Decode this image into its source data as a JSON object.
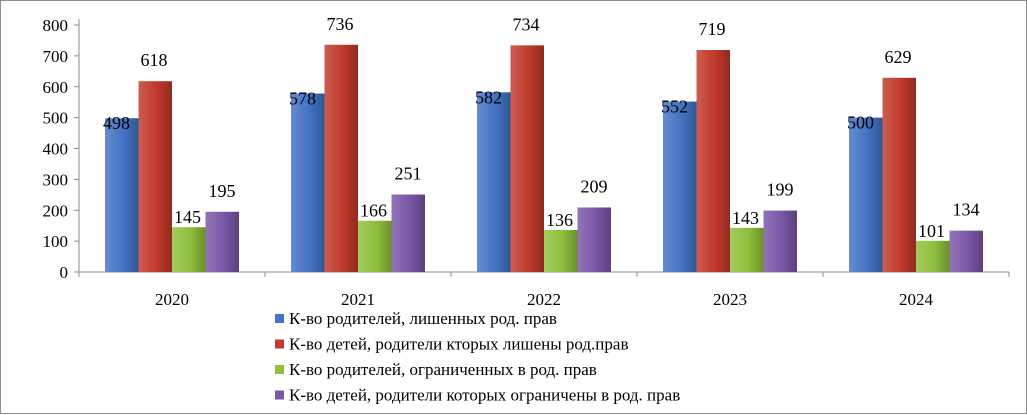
{
  "chart_data": {
    "type": "bar",
    "title": "",
    "xlabel": "",
    "ylabel": "",
    "categories": [
      "2020",
      "2021",
      "2022",
      "2023",
      "2024"
    ],
    "ylim": [
      0,
      800
    ],
    "yticks": [
      0,
      100,
      200,
      300,
      400,
      500,
      600,
      700,
      800
    ],
    "grid": false,
    "legend_position": "bottom",
    "series": [
      {
        "name": "К-во родителей, лишенных род. прав",
        "color": "#4472c4",
        "values": [
          498,
          578,
          582,
          552,
          500
        ]
      },
      {
        "name": "К-во детей, родители кторых лишены род.прав",
        "color": "#c0392b",
        "values": [
          618,
          736,
          734,
          719,
          629
        ]
      },
      {
        "name": "К-во родителей, ограниченных в род. прав",
        "color": "#8fbf3c",
        "values": [
          145,
          166,
          136,
          143,
          101
        ]
      },
      {
        "name": "К-во детей, родители которых ограничены в род. прав",
        "color": "#7a56a6",
        "values": [
          195,
          251,
          209,
          199,
          134
        ]
      }
    ]
  }
}
